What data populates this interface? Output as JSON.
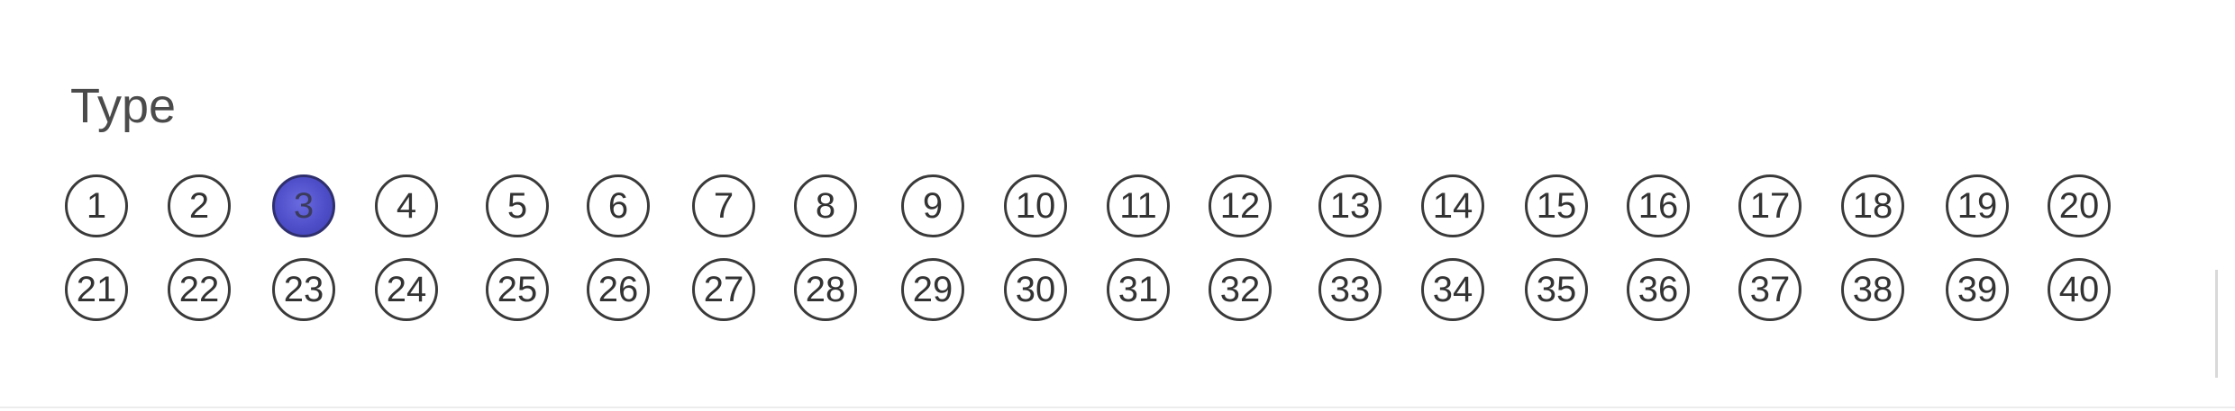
{
  "form": {
    "title": "Type",
    "selected_value": "3",
    "row1": [
      "1",
      "2",
      "3",
      "4",
      "5",
      "6",
      "7",
      "8",
      "9",
      "10",
      "11",
      "12",
      "13",
      "14",
      "15",
      "16",
      "17",
      "18",
      "19",
      "20"
    ],
    "row2": [
      "21",
      "22",
      "23",
      "24",
      "25",
      "26",
      "27",
      "28",
      "29",
      "30",
      "31",
      "32",
      "33",
      "34",
      "35",
      "36",
      "37",
      "38",
      "39",
      "40"
    ],
    "fill_color": "#5252cc"
  }
}
